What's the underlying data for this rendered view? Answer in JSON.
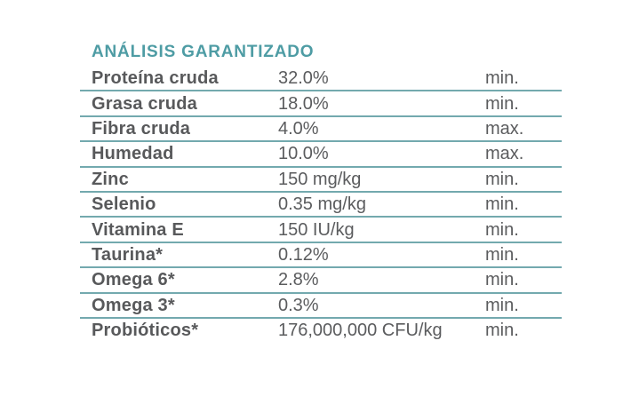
{
  "title": "ANÁLISIS GARANTIZADO",
  "colors": {
    "title": "#4e9ca4",
    "divider": "#73a9ae",
    "label_text": "#58595b",
    "value_text": "#5b5c5e",
    "background": "#ffffff"
  },
  "table": {
    "columns": [
      "nutrient",
      "amount",
      "limit"
    ],
    "rows": [
      {
        "label": "Proteína cruda",
        "value": "32.0%",
        "limit": "min."
      },
      {
        "label": "Grasa cruda",
        "value": "18.0%",
        "limit": "min."
      },
      {
        "label": "Fibra cruda",
        "value": "4.0%",
        "limit": "max."
      },
      {
        "label": "Humedad",
        "value": "10.0%",
        "limit": "max."
      },
      {
        "label": "Zinc",
        "value": "150 mg/kg",
        "limit": "min."
      },
      {
        "label": "Selenio",
        "value": "0.35 mg/kg",
        "limit": "min."
      },
      {
        "label": "Vitamina E",
        "value": "150 IU/kg",
        "limit": "min."
      },
      {
        "label": "Taurina*",
        "value": "0.12%",
        "limit": "min."
      },
      {
        "label": "Omega 6*",
        "value": "2.8%",
        "limit": "min."
      },
      {
        "label": "Omega 3*",
        "value": "0.3%",
        "limit": "min."
      },
      {
        "label": "Probióticos*",
        "value": "176,000,000 CFU/kg",
        "limit": "min."
      }
    ]
  }
}
